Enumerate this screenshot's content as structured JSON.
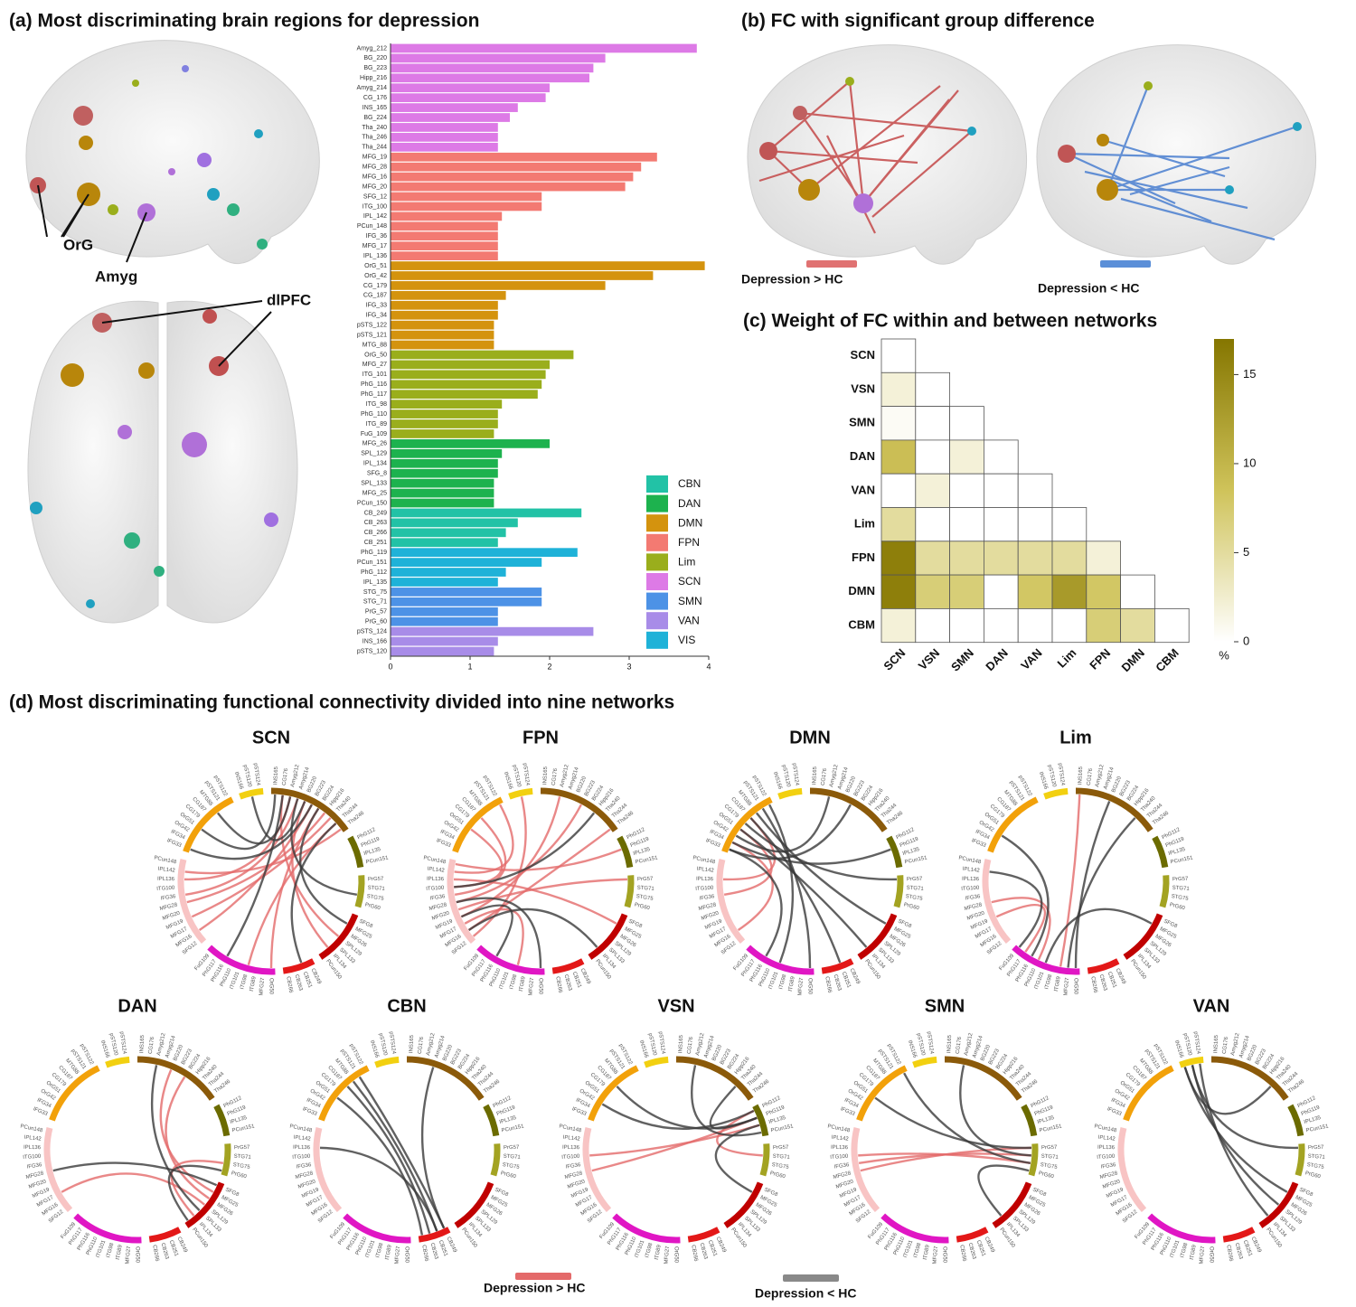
{
  "chart_data": [
    {
      "type": "bar",
      "orientation": "horizontal",
      "title": "(a) Most discriminating brain regions for depression",
      "brain_labels": [
        "OrG",
        "Amyg",
        "dlPFC"
      ],
      "categories": [
        "Amyg_212",
        "BG_220",
        "BG_223",
        "Hipp_216",
        "Amyg_214",
        "CG_176",
        "INS_165",
        "BG_224",
        "Tha_240",
        "Tha_246",
        "Tha_244",
        "MFG_19",
        "MFG_28",
        "MFG_16",
        "MFG_20",
        "SFG_12",
        "ITG_100",
        "IPL_142",
        "PCun_148",
        "IFG_36",
        "MFG_17",
        "IPL_136",
        "OrG_51",
        "OrG_42",
        "CG_179",
        "CG_187",
        "IFG_33",
        "IFG_34",
        "pSTS_122",
        "pSTS_121",
        "MTG_88",
        "OrG_50",
        "MFG_27",
        "ITG_101",
        "PhG_116",
        "PhG_117",
        "ITG_98",
        "PhG_110",
        "ITG_89",
        "FuG_109",
        "MFG_26",
        "SPL_129",
        "IPL_134",
        "SFG_8",
        "SPL_133",
        "MFG_25",
        "PCun_150",
        "CB_249",
        "CB_263",
        "CB_266",
        "CB_251",
        "PhG_119",
        "PCun_151",
        "PhG_112",
        "IPL_135",
        "STG_75",
        "STG_71",
        "PrG_57",
        "PrG_60",
        "pSTS_124",
        "INS_166",
        "pSTS_120"
      ],
      "values": [
        3.85,
        2.7,
        2.55,
        2.5,
        2.0,
        1.95,
        1.6,
        1.5,
        1.35,
        1.35,
        1.35,
        3.35,
        3.15,
        3.05,
        2.95,
        1.9,
        1.9,
        1.4,
        1.35,
        1.35,
        1.35,
        1.35,
        3.95,
        3.3,
        2.7,
        1.45,
        1.35,
        1.35,
        1.3,
        1.3,
        1.3,
        2.3,
        2.0,
        1.95,
        1.9,
        1.85,
        1.4,
        1.35,
        1.35,
        1.3,
        2.0,
        1.4,
        1.35,
        1.35,
        1.3,
        1.3,
        1.3,
        2.4,
        1.6,
        1.45,
        1.35,
        2.35,
        1.9,
        1.45,
        1.35,
        1.9,
        1.9,
        1.35,
        1.35,
        2.55,
        1.35,
        1.3
      ],
      "colors": [
        "#dd7ae6",
        "#dd7ae6",
        "#dd7ae6",
        "#dd7ae6",
        "#dd7ae6",
        "#dd7ae6",
        "#dd7ae6",
        "#dd7ae6",
        "#dd7ae6",
        "#dd7ae6",
        "#dd7ae6",
        "#f37a72",
        "#f37a72",
        "#f37a72",
        "#f37a72",
        "#f37a72",
        "#f37a72",
        "#f37a72",
        "#f37a72",
        "#f37a72",
        "#f37a72",
        "#f37a72",
        "#d4930e",
        "#d4930e",
        "#d4930e",
        "#d4930e",
        "#d4930e",
        "#d4930e",
        "#d4930e",
        "#d4930e",
        "#d4930e",
        "#9aae1c",
        "#9aae1c",
        "#9aae1c",
        "#9aae1c",
        "#9aae1c",
        "#9aae1c",
        "#9aae1c",
        "#9aae1c",
        "#9aae1c",
        "#1db24e",
        "#1db24e",
        "#1db24e",
        "#1db24e",
        "#1db24e",
        "#1db24e",
        "#1db24e",
        "#22c2a6",
        "#22c2a6",
        "#22c2a6",
        "#22c2a6",
        "#1fb2d8",
        "#1fb2d8",
        "#1fb2d8",
        "#1fb2d8",
        "#4d92e6",
        "#4d92e6",
        "#4d92e6",
        "#4d92e6",
        "#a88ce8",
        "#a88ce8",
        "#a88ce8"
      ],
      "xlim": [
        0,
        4
      ],
      "xticks": [
        0,
        1,
        2,
        3,
        4
      ],
      "legend": [
        {
          "name": "CBN",
          "color": "#22c2a6"
        },
        {
          "name": "DAN",
          "color": "#1db24e"
        },
        {
          "name": "DMN",
          "color": "#d4930e"
        },
        {
          "name": "FPN",
          "color": "#f37a72"
        },
        {
          "name": "Lim",
          "color": "#9aae1c"
        },
        {
          "name": "SCN",
          "color": "#dd7ae6"
        },
        {
          "name": "SMN",
          "color": "#4d92e6"
        },
        {
          "name": "VAN",
          "color": "#a88ce8"
        },
        {
          "name": "VIS",
          "color": "#1fb2d8"
        }
      ]
    },
    {
      "type": "brain-network",
      "title": "(b) FC with significant group difference",
      "legend": [
        {
          "name": "Depression > HC",
          "color": "#e07272"
        },
        {
          "name": "Depression < HC",
          "color": "#5b8fd8"
        }
      ]
    },
    {
      "type": "heatmap",
      "title": "(c) Weight of FC within and between networks",
      "rows": [
        "SCN",
        "VSN",
        "SMN",
        "DAN",
        "VAN",
        "Lim",
        "FPN",
        "DMN",
        "CBM"
      ],
      "columns": [
        "SCN",
        "VSN",
        "SMN",
        "DAN",
        "VAN",
        "Lim",
        "FPN",
        "DMN",
        "CBM"
      ],
      "values": [
        [
          0,
          null,
          null,
          null,
          null,
          null,
          null,
          null,
          null
        ],
        [
          2,
          0,
          null,
          null,
          null,
          null,
          null,
          null,
          null
        ],
        [
          0.5,
          0,
          0,
          null,
          null,
          null,
          null,
          null,
          null
        ],
        [
          9,
          0,
          2,
          0,
          null,
          null,
          null,
          null,
          null
        ],
        [
          0,
          2,
          0,
          0,
          0,
          null,
          null,
          null,
          null
        ],
        [
          5,
          0,
          0,
          0,
          0,
          0,
          null,
          null,
          null
        ],
        [
          16,
          5,
          5,
          5,
          5,
          5,
          2,
          null,
          null
        ],
        [
          16,
          7,
          7,
          0,
          8,
          13,
          8,
          0,
          null
        ],
        [
          2,
          0,
          0,
          0,
          0,
          0,
          7,
          5,
          0
        ]
      ],
      "zlim": [
        0,
        17
      ],
      "zticks": [
        0,
        5,
        10,
        15
      ],
      "colorbar_label": "%"
    },
    {
      "type": "chord",
      "title": "(d) Most discriminating functional connectivity divided into nine networks",
      "segments": [
        {
          "color": "#8b5a0a",
          "labels": [
            "INS165",
            "CG176",
            "Amyg212",
            "Amyg214",
            "BG220",
            "BG223",
            "BG224",
            "Hipp216",
            "Tha240",
            "Tha244",
            "Tha246"
          ]
        },
        {
          "color": "#6b6b00",
          "labels": [
            "PhG112",
            "PhG119",
            "IPL135",
            "PCun151"
          ]
        },
        {
          "color": "#a3a322",
          "labels": [
            "PrG57",
            "STG71",
            "STG75",
            "PrG60"
          ]
        },
        {
          "color": "#c00000",
          "labels": [
            "SFG8",
            "MFG25",
            "MFG26",
            "SPL129",
            "SPL133",
            "IPL134",
            "PCun150"
          ]
        },
        {
          "color": "#e31818",
          "labels": [
            "CB249",
            "CB251",
            "CB263",
            "CB266"
          ]
        },
        {
          "color": "#e016c4",
          "labels": [
            "OrG50",
            "MFG27",
            "ITG89",
            "ITG98",
            "ITG101",
            "PhG110",
            "PhG116",
            "PhG117",
            "FuG109"
          ]
        },
        {
          "color": "#f8c4c4",
          "labels": [
            "SFG12",
            "MFG16",
            "MFG17",
            "MFG19",
            "MFG20",
            "MFG28",
            "IFG36",
            "ITG100",
            "IPL136",
            "IPL142",
            "PCun148"
          ]
        },
        {
          "color": "#f2a10a",
          "labels": [
            "IFG33",
            "IFG34",
            "OrG42",
            "OrG51",
            "CG179",
            "CG187",
            "MTG88",
            "pSTS121",
            "pSTS122"
          ]
        },
        {
          "color": "#f2d010",
          "labels": [
            "INS166",
            "pSTS120",
            "pSTS124"
          ]
        }
      ],
      "diagrams": [
        {
          "title": "SCN",
          "increased": [
            [
              3,
              45
            ],
            [
              5,
              40
            ],
            [
              8,
              42
            ],
            [
              2,
              47
            ],
            [
              6,
              30
            ],
            [
              9,
              33
            ],
            [
              1,
              22
            ],
            [
              4,
              24
            ],
            [
              10,
              48
            ],
            [
              7,
              44
            ]
          ],
          "decreased": [
            [
              0,
              53
            ],
            [
              2,
              56
            ],
            [
              4,
              60
            ],
            [
              6,
              20
            ],
            [
              9,
              27
            ],
            [
              1,
              36
            ],
            [
              3,
              17
            ],
            [
              5,
              50
            ]
          ]
        },
        {
          "title": "FPN",
          "increased": [
            [
              40,
              10
            ],
            [
              42,
              2
            ],
            [
              44,
              5
            ],
            [
              45,
              55
            ],
            [
              46,
              53
            ],
            [
              47,
              20
            ],
            [
              41,
              33
            ],
            [
              43,
              15
            ],
            [
              48,
              58
            ],
            [
              39,
              60
            ],
            [
              49,
              12
            ]
          ],
          "decreased": [
            [
              44,
              30
            ],
            [
              40,
              24
            ],
            [
              46,
              7
            ],
            [
              42,
              36
            ]
          ]
        },
        {
          "title": "DMN",
          "increased": [
            [
              51,
              40
            ],
            [
              53,
              45
            ],
            [
              55,
              47
            ]
          ],
          "decreased": [
            [
              50,
              5
            ],
            [
              52,
              2
            ],
            [
              54,
              15
            ],
            [
              56,
              20
            ],
            [
              57,
              30
            ],
            [
              58,
              34
            ],
            [
              51,
              12
            ],
            [
              53,
              24
            ],
            [
              55,
              27
            ],
            [
              50,
              36
            ]
          ]
        },
        {
          "title": "Lim",
          "increased": [
            [
              32,
              0
            ],
            [
              35,
              44
            ],
            [
              37,
              42
            ]
          ],
          "decreased": [
            [
              30,
              4
            ],
            [
              31,
              8
            ],
            [
              34,
              20
            ],
            [
              36,
              52
            ],
            [
              38,
              48
            ]
          ]
        },
        {
          "title": "DAN",
          "increased": [
            [
              20,
              4
            ],
            [
              22,
              41
            ],
            [
              24,
              17
            ],
            [
              21,
              6
            ]
          ],
          "decreased": [
            [
              19,
              44
            ],
            [
              23,
              2
            ],
            [
              25,
              18
            ]
          ]
        },
        {
          "title": "CBN",
          "increased": [],
          "decreased": [
            [
              26,
              57
            ],
            [
              27,
              56
            ],
            [
              28,
              55
            ],
            [
              29,
              53
            ],
            [
              27,
              47
            ],
            [
              26,
              3
            ]
          ]
        },
        {
          "title": "VSN",
          "increased": [
            [
              12,
              44
            ],
            [
              13,
              46
            ],
            [
              11,
              16
            ]
          ],
          "decreased": [
            [
              11,
              52
            ],
            [
              12,
              55
            ],
            [
              14,
              2
            ],
            [
              13,
              20
            ],
            [
              12,
              8
            ]
          ]
        },
        {
          "title": "SMN",
          "increased": [
            [
              15,
              44
            ],
            [
              16,
              45
            ],
            [
              17,
              46
            ]
          ],
          "decreased": [
            [
              15,
              53
            ],
            [
              16,
              2
            ],
            [
              18,
              24
            ],
            [
              17,
              58
            ]
          ]
        },
        {
          "title": "VAN",
          "increased": [],
          "decreased": [
            [
              59,
              20
            ],
            [
              60,
              22
            ],
            [
              61,
              24
            ],
            [
              60,
              15
            ],
            [
              59,
              8
            ]
          ]
        }
      ],
      "legend": [
        {
          "name": "Depression > HC",
          "color": "#e46a6a"
        },
        {
          "name": "Depression < HC",
          "color": "#3a3a3a"
        }
      ]
    }
  ]
}
